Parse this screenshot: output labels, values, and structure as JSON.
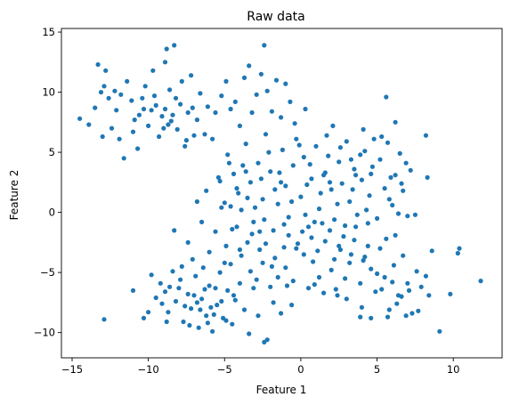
{
  "chart_data": {
    "type": "scatter",
    "title": "Raw data",
    "xlabel": "Feature 1",
    "ylabel": "Feature 2",
    "xlim": [
      -15.7,
      13.2
    ],
    "ylim": [
      -12.1,
      15.3
    ],
    "xticks": [
      -15,
      -10,
      -5,
      0,
      5,
      10
    ],
    "yticks": [
      -10,
      -5,
      0,
      5,
      10,
      15
    ],
    "grid": false,
    "legend": "none",
    "point_color": "#1f77b4",
    "series": [
      {
        "points": [
          [
            -14.5,
            7.8
          ],
          [
            -13.9,
            7.3
          ],
          [
            -13.5,
            8.7
          ],
          [
            -13.3,
            12.3
          ],
          [
            -13.1,
            10.0
          ],
          [
            -12.9,
            10.5
          ],
          [
            -12.8,
            11.8
          ],
          [
            -12.6,
            9.5
          ],
          [
            -12.4,
            7.0
          ],
          [
            -12.2,
            10.1
          ],
          [
            -11.9,
            6.1
          ],
          [
            -11.8,
            9.8
          ],
          [
            -11.6,
            4.5
          ],
          [
            -11.4,
            10.9
          ],
          [
            -11.1,
            9.3
          ],
          [
            -10.9,
            7.7
          ],
          [
            -10.7,
            5.3
          ],
          [
            -10.6,
            8.1
          ],
          [
            -10.4,
            9.5
          ],
          [
            -10.2,
            10.5
          ],
          [
            -10.0,
            7.2
          ],
          [
            -9.8,
            8.5
          ],
          [
            -9.7,
            11.8
          ],
          [
            -9.5,
            8.9
          ],
          [
            -9.3,
            6.3
          ],
          [
            -9.1,
            8.0
          ],
          [
            -8.9,
            12.5
          ],
          [
            -8.8,
            13.6
          ],
          [
            -8.6,
            10.2
          ],
          [
            -8.5,
            7.6
          ],
          [
            -8.3,
            13.9
          ],
          [
            -8.1,
            6.9
          ],
          [
            -7.9,
            9.0
          ],
          [
            -7.8,
            10.9
          ],
          [
            -7.6,
            5.5
          ],
          [
            -7.4,
            8.3
          ],
          [
            -7.2,
            11.4
          ],
          [
            -7.0,
            6.4
          ],
          [
            -6.8,
            7.7
          ],
          [
            -6.6,
            9.9
          ],
          [
            -8.4,
            8.1
          ],
          [
            -8.7,
            7.3
          ],
          [
            -9.6,
            9.7
          ],
          [
            -10.3,
            8.6
          ],
          [
            -7.5,
            6.0
          ],
          [
            -8.2,
            9.5
          ],
          [
            -9.0,
            7.0
          ],
          [
            -11.0,
            6.7
          ],
          [
            -12.1,
            8.5
          ],
          [
            -13.0,
            6.3
          ],
          [
            -8.9,
            8.6
          ],
          [
            -7.1,
            8.7
          ],
          [
            -6.3,
            6.5
          ],
          [
            -6.1,
            8.8
          ],
          [
            -5.6,
            8.3
          ],
          [
            -5.2,
            9.7
          ],
          [
            -4.9,
            10.9
          ],
          [
            -4.6,
            8.6
          ],
          [
            -4.3,
            9.2
          ],
          [
            -4.0,
            7.2
          ],
          [
            -3.7,
            11.2
          ],
          [
            -3.4,
            12.2
          ],
          [
            -3.2,
            8.3
          ],
          [
            -2.9,
            9.8
          ],
          [
            -2.6,
            11.5
          ],
          [
            -2.4,
            13.9
          ],
          [
            -2.2,
            10.1
          ],
          [
            -1.9,
            8.4
          ],
          [
            -1.6,
            11.0
          ],
          [
            -1.3,
            7.9
          ],
          [
            -1.0,
            10.7
          ],
          [
            -0.7,
            9.2
          ],
          [
            -0.4,
            7.4
          ],
          [
            0.3,
            8.6
          ],
          [
            2.1,
            7.2
          ],
          [
            3.3,
            4.4
          ],
          [
            4.1,
            6.9
          ],
          [
            4.8,
            6.1
          ],
          [
            5.6,
            9.6
          ],
          [
            6.2,
            7.5
          ],
          [
            8.2,
            6.4
          ],
          [
            -5.8,
            6.1
          ],
          [
            -4.8,
            4.8
          ],
          [
            -4.4,
            3.2
          ],
          [
            -4.1,
            1.6
          ],
          [
            -3.9,
            0.2
          ],
          [
            -3.6,
            5.7
          ],
          [
            -3.3,
            2.5
          ],
          [
            -3.1,
            -0.8
          ],
          [
            -2.8,
            4.1
          ],
          [
            -2.5,
            1.1
          ],
          [
            -2.3,
            6.5
          ],
          [
            -2.0,
            3.4
          ],
          [
            -1.8,
            -1.5
          ],
          [
            -1.5,
            0.7
          ],
          [
            -1.2,
            5.2
          ],
          [
            -1.0,
            2.2
          ],
          [
            -0.8,
            -0.4
          ],
          [
            -0.5,
            3.9
          ],
          [
            -0.3,
            6.1
          ],
          [
            0.0,
            1.3
          ],
          [
            0.2,
            4.6
          ],
          [
            0.5,
            -1.2
          ],
          [
            0.7,
            2.8
          ],
          [
            1.0,
            5.5
          ],
          [
            1.2,
            0.3
          ],
          [
            1.5,
            3.1
          ],
          [
            1.7,
            6.4
          ],
          [
            2.0,
            1.9
          ],
          [
            2.2,
            -0.6
          ],
          [
            2.5,
            4.2
          ],
          [
            2.7,
            2.4
          ],
          [
            3.0,
            5.9
          ],
          [
            3.2,
            0.9
          ],
          [
            3.5,
            3.6
          ],
          [
            3.7,
            -0.2
          ],
          [
            4.0,
            2.7
          ],
          [
            4.2,
            5.1
          ],
          [
            4.5,
            1.4
          ],
          [
            4.7,
            3.8
          ],
          [
            5.0,
            -0.5
          ],
          [
            5.2,
            4.4
          ],
          [
            5.5,
            2.0
          ],
          [
            5.7,
            5.8
          ],
          [
            6.0,
            0.6
          ],
          [
            6.2,
            3.1
          ],
          [
            6.5,
            4.9
          ],
          [
            6.7,
            1.8
          ],
          [
            7.0,
            -0.3
          ],
          [
            7.2,
            3.5
          ],
          [
            6.9,
            4.1
          ],
          [
            6.4,
            -0.1
          ],
          [
            5.9,
            2.9
          ],
          [
            5.3,
            6.3
          ],
          [
            4.4,
            -0.9
          ],
          [
            3.9,
            4.8
          ],
          [
            2.9,
            -1.1
          ],
          [
            1.8,
            4.7
          ],
          [
            0.9,
            -0.8
          ],
          [
            -0.1,
            5.6
          ],
          [
            -1.1,
            -1.0
          ],
          [
            -2.1,
            5.0
          ],
          [
            -3.0,
            0.4
          ],
          [
            -3.8,
            3.9
          ],
          [
            -4.5,
            -1.4
          ],
          [
            -5.3,
            2.6
          ],
          [
            -5.0,
            0.8
          ],
          [
            -4.2,
            2.0
          ],
          [
            -2.7,
            -1.6
          ],
          [
            -1.7,
            1.9
          ],
          [
            -0.6,
            0.9
          ],
          [
            0.4,
            2.3
          ],
          [
            1.3,
            1.6
          ],
          [
            2.4,
            0.7
          ],
          [
            3.4,
            1.9
          ],
          [
            4.6,
            3.2
          ],
          [
            5.8,
            1.1
          ],
          [
            6.6,
            2.4
          ],
          [
            7.5,
            -0.2
          ],
          [
            8.3,
            2.9
          ],
          [
            3.6,
            3.1
          ],
          [
            -4.7,
            4.1
          ],
          [
            -2.6,
            2.8
          ],
          [
            0.6,
            4.0
          ],
          [
            2.6,
            5.4
          ],
          [
            4.3,
            0.2
          ],
          [
            -1.4,
            3.3
          ],
          [
            -3.5,
            1.2
          ],
          [
            1.9,
            2.5
          ],
          [
            -12.9,
            -8.9
          ],
          [
            -11.0,
            -6.5
          ],
          [
            -10.3,
            -8.8
          ],
          [
            -9.8,
            -5.2
          ],
          [
            -9.5,
            -7.1
          ],
          [
            -9.2,
            -5.9
          ],
          [
            -8.9,
            -6.6
          ],
          [
            -8.7,
            -8.3
          ],
          [
            -8.4,
            -4.9
          ],
          [
            -8.2,
            -7.4
          ],
          [
            -7.9,
            -5.6
          ],
          [
            -7.7,
            -9.1
          ],
          [
            -7.4,
            -6.8
          ],
          [
            -7.2,
            -8.0
          ],
          [
            -6.9,
            -5.3
          ],
          [
            -6.7,
            -9.6
          ],
          [
            -6.5,
            -7.2
          ],
          [
            -6.2,
            -8.6
          ],
          [
            -6.0,
            -6.1
          ],
          [
            -5.8,
            -9.9
          ],
          [
            -5.5,
            -7.7
          ],
          [
            -5.3,
            -5.0
          ],
          [
            -5.1,
            -8.8
          ],
          [
            -4.8,
            -6.5
          ],
          [
            -4.5,
            -9.3
          ],
          [
            -4.3,
            -7.3
          ],
          [
            -4.0,
            -5.9
          ],
          [
            -3.7,
            -8.1
          ],
          [
            -3.4,
            -10.1
          ],
          [
            -3.1,
            -6.3
          ],
          [
            -2.8,
            -8.6
          ],
          [
            -2.4,
            -10.8
          ],
          [
            -2.2,
            -10.6
          ],
          [
            -1.8,
            -7.5
          ],
          [
            -1.3,
            -8.4
          ],
          [
            -0.9,
            -6.1
          ],
          [
            -0.6,
            -7.7
          ],
          [
            -8.0,
            -6.3
          ],
          [
            -7.6,
            -7.8
          ],
          [
            -7.0,
            -6.9
          ],
          [
            -6.6,
            -8.1
          ],
          [
            -6.3,
            -6.4
          ],
          [
            -5.9,
            -7.9
          ],
          [
            -5.6,
            -6.3
          ],
          [
            -5.2,
            -7.4
          ],
          [
            -4.9,
            -9.0
          ],
          [
            -8.6,
            -6.2
          ],
          [
            -9.1,
            -7.6
          ],
          [
            -6.8,
            -7.5
          ],
          [
            -5.7,
            -8.5
          ],
          [
            -4.4,
            -6.9
          ],
          [
            -7.3,
            -9.4
          ],
          [
            -8.8,
            -9.1
          ],
          [
            -6.1,
            -9.2
          ],
          [
            -10.0,
            -8.3
          ],
          [
            -6.4,
            -4.6
          ],
          [
            -7.8,
            -4.5
          ],
          [
            -4.6,
            -4.3
          ],
          [
            -2.9,
            -5.6
          ],
          [
            -3.3,
            -4.9
          ],
          [
            -2.5,
            -4.2
          ],
          [
            -2.0,
            -6.2
          ],
          [
            -1.5,
            -5.4
          ],
          [
            -1.0,
            -4.6
          ],
          [
            -0.5,
            -5.7
          ],
          [
            0.2,
            -3.5
          ],
          [
            0.5,
            -6.3
          ],
          [
            0.8,
            -4.1
          ],
          [
            1.2,
            -5.4
          ],
          [
            1.6,
            -2.4
          ],
          [
            2.0,
            -4.8
          ],
          [
            2.3,
            -6.4
          ],
          [
            2.6,
            -3.1
          ],
          [
            2.9,
            -5.5
          ],
          [
            3.2,
            -4.2
          ],
          [
            3.5,
            -2.3
          ],
          [
            3.9,
            -5.9
          ],
          [
            4.2,
            -3.7
          ],
          [
            4.6,
            -4.7
          ],
          [
            4.9,
            -6.6
          ],
          [
            5.2,
            -3.0
          ],
          [
            5.5,
            -5.4
          ],
          [
            5.8,
            -8.1
          ],
          [
            6.1,
            -4.4
          ],
          [
            6.4,
            -6.9
          ],
          [
            6.7,
            -3.6
          ],
          [
            7.0,
            -5.9
          ],
          [
            7.3,
            -8.4
          ],
          [
            7.6,
            -4.9
          ],
          [
            7.9,
            -6.2
          ],
          [
            8.2,
            -5.3
          ],
          [
            8.4,
            -6.9
          ],
          [
            8.6,
            -3.2
          ],
          [
            9.1,
            -9.9
          ],
          [
            9.8,
            -6.8
          ],
          [
            10.3,
            -3.4
          ],
          [
            10.4,
            -3.0
          ],
          [
            11.8,
            -5.7
          ],
          [
            5.7,
            -8.7
          ],
          [
            6.3,
            -7.6
          ],
          [
            6.9,
            -8.6
          ],
          [
            7.7,
            -8.2
          ],
          [
            4.0,
            -7.9
          ],
          [
            3.9,
            -8.7
          ],
          [
            4.6,
            -8.8
          ],
          [
            5.0,
            -5.1
          ],
          [
            5.3,
            -6.4
          ],
          [
            6.0,
            -5.8
          ],
          [
            6.6,
            -7.0
          ],
          [
            7.1,
            -6.5
          ],
          [
            3.0,
            -7.2
          ],
          [
            2.4,
            -6.9
          ],
          [
            1.5,
            -6.7
          ],
          [
            0.9,
            -6.0
          ],
          [
            -0.3,
            -3.0
          ],
          [
            0.7,
            -2.1
          ],
          [
            1.9,
            -1.5
          ],
          [
            2.8,
            -2.0
          ],
          [
            3.6,
            -1.2
          ],
          [
            4.4,
            -2.8
          ],
          [
            5.6,
            -2.2
          ],
          [
            6.2,
            -1.9
          ],
          [
            -1.7,
            -3.8
          ],
          [
            -2.3,
            -2.6
          ],
          [
            -1.1,
            -2.9
          ],
          [
            -3.9,
            -3.6
          ],
          [
            -3.5,
            -2.5
          ],
          [
            -4.9,
            -2.8
          ],
          [
            -5.6,
            -1.6
          ],
          [
            -6.5,
            -0.8
          ],
          [
            -7.4,
            -2.5
          ],
          [
            -8.3,
            -1.5
          ],
          [
            -6.0,
            -3.3
          ],
          [
            -4.2,
            -1.2
          ],
          [
            -5.2,
            0.4
          ],
          [
            -6.8,
            0.9
          ],
          [
            -7.1,
            -3.9
          ],
          [
            -5.0,
            -4.2
          ],
          [
            -0.2,
            -2.6
          ],
          [
            1.1,
            -3.2
          ],
          [
            2.2,
            -3.9
          ],
          [
            3.3,
            -3.5
          ],
          [
            4.1,
            -4.0
          ],
          [
            -2.7,
            -3.1
          ],
          [
            -1.9,
            -4.5
          ],
          [
            -4.0,
            -3.1
          ],
          [
            -3.2,
            -1.8
          ],
          [
            -0.8,
            -1.9
          ],
          [
            0.1,
            -1.6
          ],
          [
            1.4,
            -0.9
          ],
          [
            2.5,
            -2.8
          ],
          [
            -6.2,
            1.8
          ],
          [
            -5.4,
            2.9
          ],
          [
            -4.6,
            0.5
          ],
          [
            -3.6,
            3.4
          ],
          [
            -2.4,
            -0.6
          ],
          [
            -1.3,
            2.5
          ],
          [
            0.3,
            -0.2
          ],
          [
            1.6,
            3.3
          ]
        ]
      }
    ]
  }
}
